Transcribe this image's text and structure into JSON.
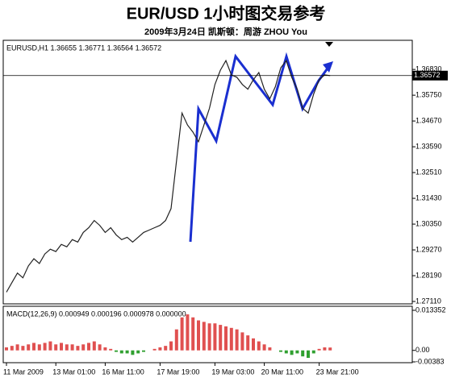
{
  "chart_data": {
    "type": "line",
    "title": "EUR/USD  1小时图交易参考",
    "subtitle": "2009年3月24日   凯斯顿：周游 ZHOU You",
    "header": "EURUSD,H1  1.36655 1.36771 1.36564 1.36572",
    "categories": [
      "11 Mar 2009",
      null,
      null,
      null,
      null,
      null,
      null,
      null,
      null,
      "13 Mar 01:00",
      null,
      null,
      null,
      null,
      null,
      null,
      null,
      null,
      "16 Mar 11:00",
      null,
      null,
      null,
      null,
      null,
      null,
      null,
      null,
      null,
      "17 Mar 19:00",
      null,
      null,
      null,
      null,
      null,
      null,
      null,
      null,
      null,
      "19 Mar 03:00",
      null,
      null,
      null,
      null,
      null,
      null,
      null,
      null,
      "20 Mar 11:00",
      null,
      null,
      null,
      null,
      null,
      null,
      null,
      null,
      null,
      "23 Mar 21:00",
      null,
      null
    ],
    "series": [
      {
        "name": "EURUSD",
        "color": "#222222",
        "values": [
          1.275,
          1.279,
          1.283,
          1.281,
          1.286,
          1.289,
          1.287,
          1.291,
          1.293,
          1.292,
          1.295,
          1.294,
          1.297,
          1.296,
          1.3,
          1.302,
          1.305,
          1.303,
          1.3,
          1.302,
          1.299,
          1.297,
          1.298,
          1.296,
          1.298,
          1.3,
          1.301,
          1.302,
          1.303,
          1.305,
          1.31,
          1.33,
          1.35,
          1.345,
          1.342,
          1.338,
          1.345,
          1.352,
          1.362,
          1.368,
          1.372,
          1.366,
          1.365,
          1.362,
          1.36,
          1.364,
          1.367,
          1.36,
          1.356,
          1.361,
          1.369,
          1.372,
          1.365,
          1.36,
          1.352,
          1.35,
          1.358,
          1.364,
          1.366,
          1.36572
        ]
      }
    ],
    "ylim": [
      1.2701,
      1.3805
    ],
    "yticks": [
      {
        "value": 1.3683,
        "label": "1.36830"
      },
      {
        "value": 1.3575,
        "label": "1.35750"
      },
      {
        "value": 1.3467,
        "label": "1.34670"
      },
      {
        "value": 1.3359,
        "label": "1.33590"
      },
      {
        "value": 1.3251,
        "label": "1.32510"
      },
      {
        "value": 1.3143,
        "label": "1.31430"
      },
      {
        "value": 1.3035,
        "label": "1.30350"
      },
      {
        "value": 1.2927,
        "label": "1.29270"
      },
      {
        "value": 1.2819,
        "label": "1.28190"
      },
      {
        "value": 1.2711,
        "label": "1.27110"
      }
    ],
    "price_marker": {
      "value": 1.36572,
      "label": "1.36572"
    },
    "macd": {
      "label": "MACD(12,26,9) 0.000949 0.000196 0.000978 0.000000",
      "values": [
        0.001,
        0.0015,
        0.002,
        0.0015,
        0.002,
        0.0025,
        0.002,
        0.0025,
        0.003,
        0.002,
        0.0025,
        0.002,
        0.002,
        0.0015,
        0.002,
        0.0025,
        0.003,
        0.002,
        0.001,
        0.0005,
        -0.0005,
        -0.001,
        -0.001,
        -0.0015,
        -0.001,
        -0.0005,
        0,
        0.0005,
        0.001,
        0.0015,
        0.003,
        0.007,
        0.011,
        0.012,
        0.011,
        0.01,
        0.0095,
        0.009,
        0.009,
        0.0085,
        0.008,
        0.0075,
        0.007,
        0.006,
        0.005,
        0.004,
        0.003,
        0.002,
        0.001,
        0,
        -0.0005,
        -0.001,
        -0.0015,
        -0.001,
        -0.002,
        -0.0025,
        -0.001,
        0.0005,
        0.001,
        0.000949
      ],
      "positive_color": "#e05050",
      "negative_color": "#30a030",
      "ylim": [
        -0.0041,
        0.0147
      ],
      "yticks": [
        0.013352,
        {
          "value": 0,
          "label": "0.00"
        },
        -0.00383
      ]
    }
  }
}
